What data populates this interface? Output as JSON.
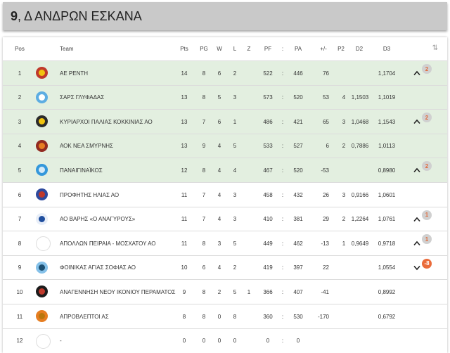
{
  "header": {
    "number": "9",
    "title_rest": ", Δ ΑΝΔΡΩΝ ΕΣΚΑΝΑ"
  },
  "columns": {
    "pos": "Pos",
    "team": "Team",
    "pts": "Pts",
    "pg": "PG",
    "w": "W",
    "l": "L",
    "z": "Z",
    "pf": "PF",
    "sep": ":",
    "pa": "PA",
    "diff": "+/-",
    "p2": "P2",
    "d2": "D2",
    "d3": "D3",
    "sort_icon": "sort-icon"
  },
  "rows": [
    {
      "pos": "1",
      "team": "ΑΕ ΡΕΝΤΗ",
      "pts": "14",
      "pg": "8",
      "w": "6",
      "l": "2",
      "z": "",
      "pf": "522",
      "sep": ":",
      "pa": "446",
      "diff": "76",
      "p2": "",
      "d2": "",
      "d3": "1,1704",
      "highlight": true,
      "logo_color": "#c0392b",
      "logo_inner": "#f1c40f",
      "trend": "up",
      "badge": "2"
    },
    {
      "pos": "2",
      "team": "ΣΑΡΣ ΓΛΥΦΑΔΑΣ",
      "pts": "13",
      "pg": "8",
      "w": "5",
      "l": "3",
      "z": "",
      "pf": "573",
      "sep": ":",
      "pa": "520",
      "diff": "53",
      "p2": "4",
      "d2": "1,1503",
      "d3": "1,1019",
      "highlight": true,
      "logo_color": "#5dade2",
      "logo_inner": "#ffffff",
      "trend": "",
      "badge": ""
    },
    {
      "pos": "3",
      "team": "ΚΥΡΙΑΡΧΟΙ ΠΑΛΙΑΣ ΚΟΚΚΙΝΙΑΣ ΑΟ",
      "pts": "13",
      "pg": "7",
      "w": "6",
      "l": "1",
      "z": "",
      "pf": "486",
      "sep": ":",
      "pa": "421",
      "diff": "65",
      "p2": "3",
      "d2": "1,0468",
      "d3": "1,1543",
      "highlight": true,
      "logo_color": "#2c2c2c",
      "logo_inner": "#f1c40f",
      "trend": "up",
      "badge": "2"
    },
    {
      "pos": "4",
      "team": "ΑΟΚ ΝΕΑ ΣΜΥΡΝΗΣ",
      "pts": "13",
      "pg": "9",
      "w": "4",
      "l": "5",
      "z": "",
      "pf": "533",
      "sep": ":",
      "pa": "527",
      "diff": "6",
      "p2": "2",
      "d2": "0,7886",
      "d3": "1,0113",
      "highlight": true,
      "logo_color": "#922b21",
      "logo_inner": "#e67e22",
      "trend": "",
      "badge": ""
    },
    {
      "pos": "5",
      "team": "ΠΑΝΑΙΓΙΝΑΪΚΟΣ",
      "pts": "12",
      "pg": "8",
      "w": "4",
      "l": "4",
      "z": "",
      "pf": "467",
      "sep": ":",
      "pa": "520",
      "diff": "-53",
      "p2": "",
      "d2": "",
      "d3": "0,8980",
      "highlight": true,
      "logo_color": "#3498db",
      "logo_inner": "#d6eaf8",
      "trend": "up",
      "badge": "2"
    },
    {
      "pos": "6",
      "team": "ΠΡΟΦΗΤΗΣ ΗΛΙΑΣ ΑΟ",
      "pts": "11",
      "pg": "7",
      "w": "4",
      "l": "3",
      "z": "",
      "pf": "458",
      "sep": ":",
      "pa": "432",
      "diff": "26",
      "p2": "3",
      "d2": "0,9166",
      "d3": "1,0601",
      "highlight": false,
      "logo_color": "#2e4a9e",
      "logo_inner": "#c0392b",
      "trend": "",
      "badge": ""
    },
    {
      "pos": "7",
      "team": "ΑΟ ΒΑΡΗΣ «Ο ΑΝΑΓΥΡΟΥΣ»",
      "pts": "11",
      "pg": "7",
      "w": "4",
      "l": "3",
      "z": "",
      "pf": "410",
      "sep": ":",
      "pa": "381",
      "diff": "29",
      "p2": "2",
      "d2": "1,2264",
      "d3": "1,0761",
      "highlight": false,
      "logo_color": "#e8eef8",
      "logo_inner": "#1f4e9e",
      "trend": "up",
      "badge": "1"
    },
    {
      "pos": "8",
      "team": "ΑΠΟΛΛΩΝ ΠΕΙΡΑΙΑ - ΜΟΣΧΑΤΟΥ ΑΟ",
      "pts": "11",
      "pg": "8",
      "w": "3",
      "l": "5",
      "z": "",
      "pf": "449",
      "sep": ":",
      "pa": "462",
      "diff": "-13",
      "p2": "1",
      "d2": "0,9649",
      "d3": "0,9718",
      "highlight": false,
      "logo_color": "",
      "logo_inner": "",
      "trend": "up",
      "badge": "1"
    },
    {
      "pos": "9",
      "team": "ΦΟΙΝΙΚΑΣ ΑΓΙΑΣ ΣΟΦΙΑΣ ΑΟ",
      "pts": "10",
      "pg": "6",
      "w": "4",
      "l": "2",
      "z": "",
      "pf": "419",
      "sep": ":",
      "pa": "397",
      "diff": "22",
      "p2": "",
      "d2": "",
      "d3": "1,0554",
      "highlight": false,
      "logo_color": "#85c1e9",
      "logo_inner": "#1b4f72",
      "trend": "down",
      "badge": "-8"
    },
    {
      "pos": "10",
      "team": "ΑΝΑΓΕΝΝΗΣΗ ΝΕΟΥ ΙΚΟΝΙΟΥ ΠΕΡΑΜΑΤΟΣ",
      "pts": "9",
      "pg": "8",
      "w": "2",
      "l": "5",
      "z": "1",
      "pf": "366",
      "sep": ":",
      "pa": "407",
      "diff": "-41",
      "p2": "",
      "d2": "",
      "d3": "0,8992",
      "highlight": false,
      "logo_color": "#1c1c1c",
      "logo_inner": "#c0392b",
      "trend": "",
      "badge": ""
    },
    {
      "pos": "11",
      "team": "ΑΠΡΟΒΛΕΠΤΟΙ ΑΣ",
      "pts": "8",
      "pg": "8",
      "w": "0",
      "l": "8",
      "z": "",
      "pf": "360",
      "sep": ":",
      "pa": "530",
      "diff": "-170",
      "p2": "",
      "d2": "",
      "d3": "0,6792",
      "highlight": false,
      "logo_color": "#e67e22",
      "logo_inner": "#b9770e",
      "trend": "",
      "badge": ""
    },
    {
      "pos": "12",
      "team": "-",
      "pts": "0",
      "pg": "0",
      "w": "0",
      "l": "0",
      "z": "",
      "pf": "0",
      "sep": ":",
      "pa": "0",
      "diff": "",
      "p2": "",
      "d2": "",
      "d3": "",
      "highlight": false,
      "logo_color": "",
      "logo_inner": "",
      "trend": "",
      "badge": ""
    }
  ]
}
